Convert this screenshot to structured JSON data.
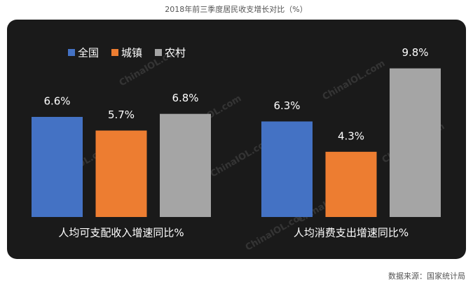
{
  "chart_data": {
    "type": "bar",
    "title": "2018年前三季度居民收支增长对比（%）",
    "source": "数据来源：国家统计局",
    "watermark": "ChinaIOL.com",
    "categories": [
      "人均可支配收入增速同比%",
      "人均消费支出增速同比%"
    ],
    "series": [
      {
        "name": "全国",
        "color": "#4472c4",
        "values": [
          6.6,
          6.3
        ],
        "value_labels": [
          "6.6%",
          "6.3%"
        ]
      },
      {
        "name": "城镇",
        "color": "#ed7d31",
        "values": [
          5.7,
          4.3
        ],
        "value_labels": [
          "5.7%",
          "4.3%"
        ]
      },
      {
        "name": "农村",
        "color": "#a5a5a5",
        "values": [
          6.8,
          9.8
        ],
        "value_labels": [
          "6.8%",
          "9.8%"
        ]
      }
    ],
    "ylim": [
      0,
      12
    ],
    "legend": "top-left"
  }
}
